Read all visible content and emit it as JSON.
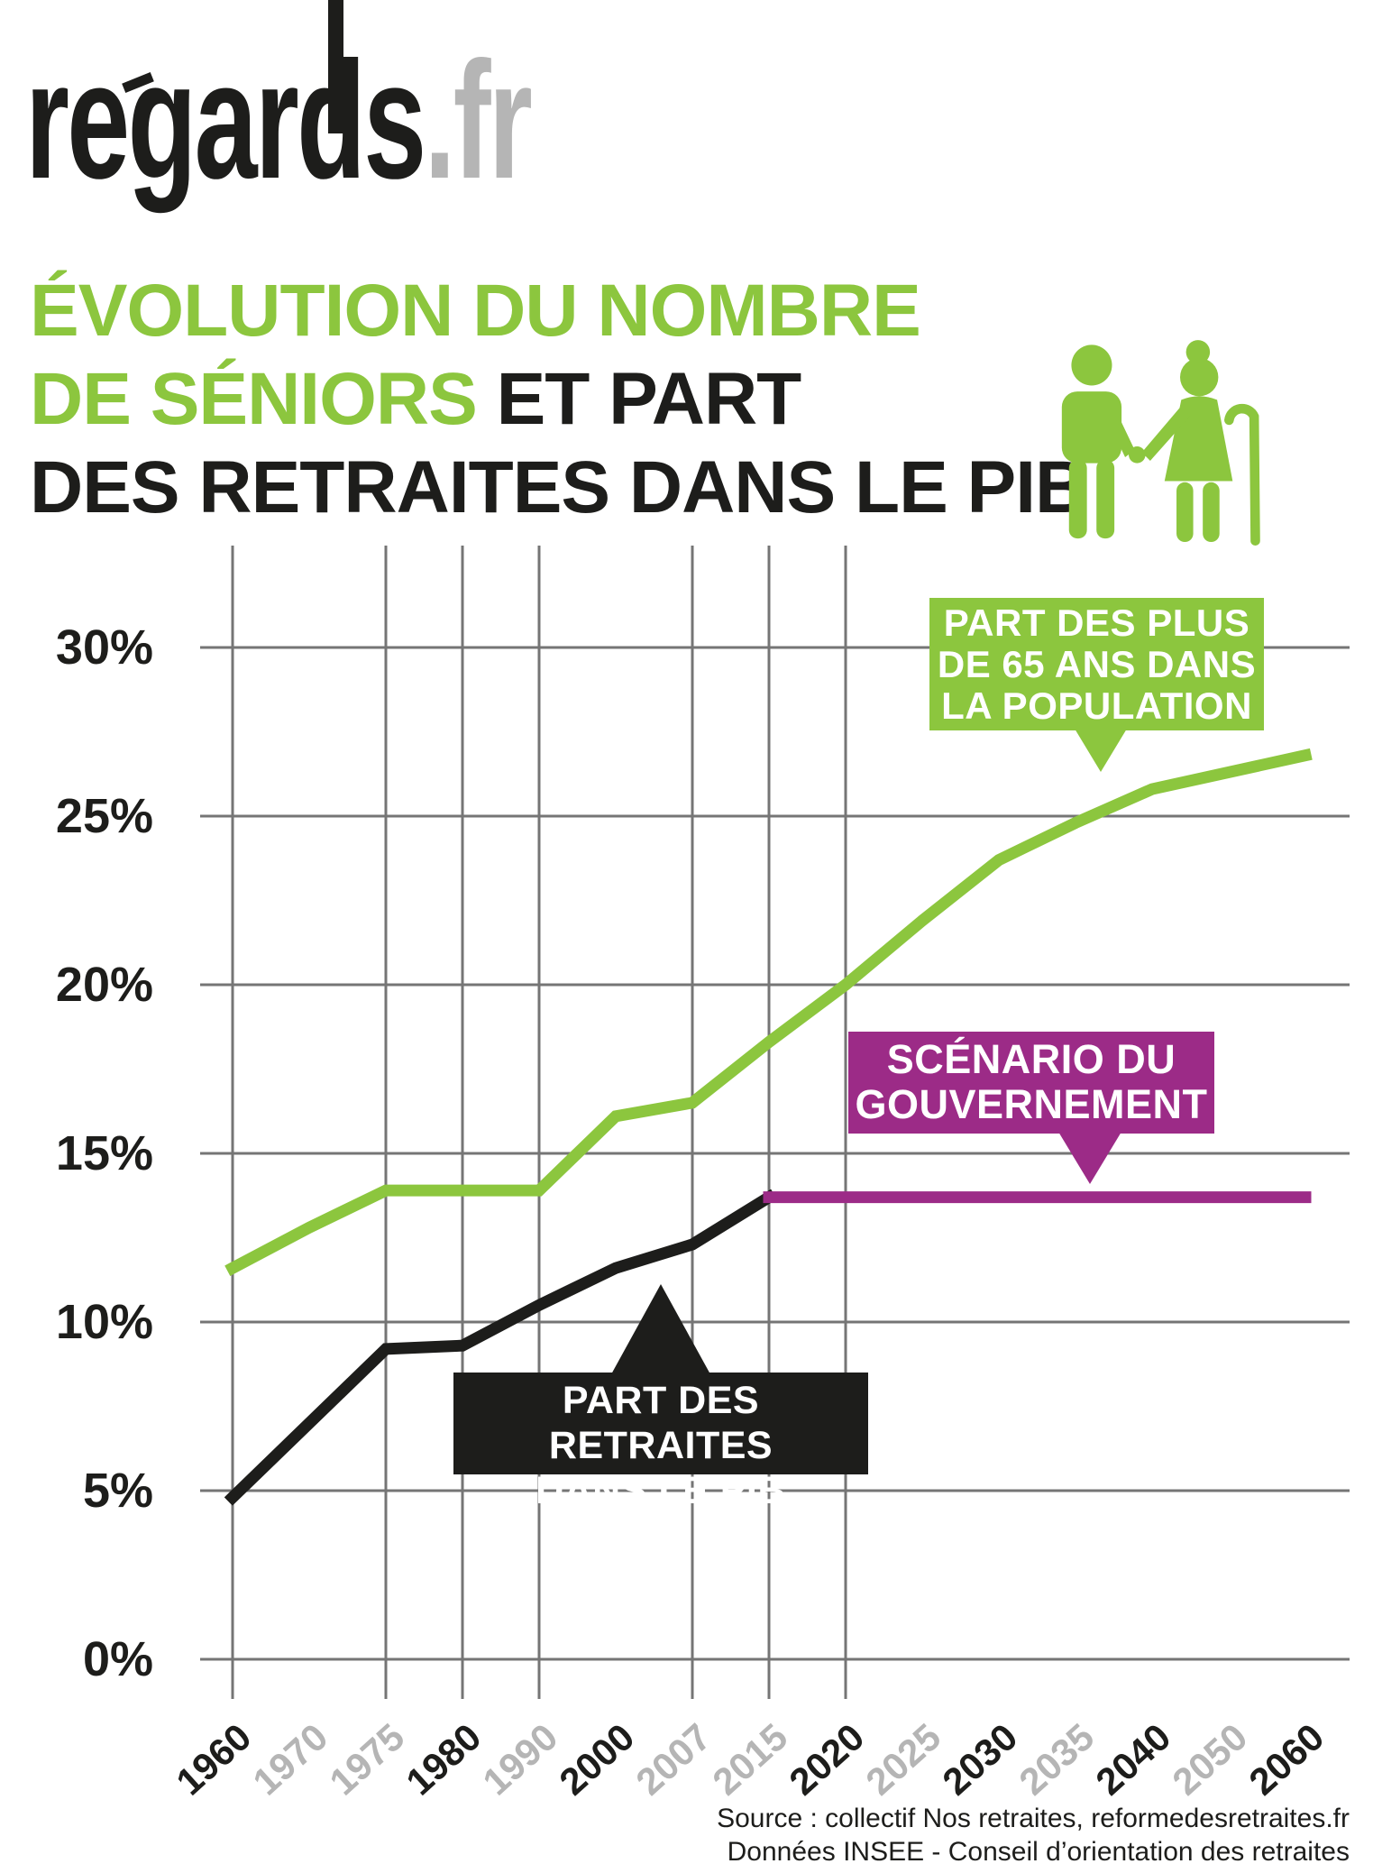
{
  "logo": {
    "name": "regards",
    "tld": ".fr"
  },
  "title": {
    "line1_green": "ÉVOLUTION DU NOMBRE",
    "line2_green": "DE SÉNIORS",
    "line2_black": " ET PART",
    "line3_black": "DES RETRAITES DANS LE PIB"
  },
  "colors": {
    "green": "#8cc63e",
    "purple": "#9c2b87",
    "black": "#1d1d1b",
    "muted_gray": "#b5b5b5",
    "grid_gray": "#757575"
  },
  "y_axis": {
    "ticks": [
      {
        "label": "30%",
        "value": 30
      },
      {
        "label": "25%",
        "value": 25
      },
      {
        "label": "20%",
        "value": 20
      },
      {
        "label": "15%",
        "value": 15
      },
      {
        "label": "10%",
        "value": 10
      },
      {
        "label": "5%",
        "value": 5
      },
      {
        "label": "0%",
        "value": 0
      }
    ]
  },
  "x_axis": {
    "labels": [
      {
        "text": "1960",
        "muted": false
      },
      {
        "text": "1970",
        "muted": true
      },
      {
        "text": "1975",
        "muted": true
      },
      {
        "text": "1980",
        "muted": false
      },
      {
        "text": "1990",
        "muted": true
      },
      {
        "text": "2000",
        "muted": false
      },
      {
        "text": "2007",
        "muted": true
      },
      {
        "text": "2015",
        "muted": true
      },
      {
        "text": "2020",
        "muted": false
      },
      {
        "text": "2025",
        "muted": true
      },
      {
        "text": "2030",
        "muted": false
      },
      {
        "text": "2035",
        "muted": true
      },
      {
        "text": "2040",
        "muted": false
      },
      {
        "text": "2050",
        "muted": true
      },
      {
        "text": "2060",
        "muted": false
      }
    ]
  },
  "callouts": {
    "green": {
      "lines": [
        "PART DES PLUS",
        "DE 65 ANS DANS",
        "LA POPULATION"
      ]
    },
    "purple": {
      "lines": [
        "SCÉNARIO DU",
        "GOUVERNEMENT"
      ]
    },
    "black": {
      "lines": [
        "PART DES RETRAITES",
        "DANS LE PIB"
      ]
    }
  },
  "source": {
    "line1": "Source : collectif Nos retraites, reformedesretraites.fr",
    "line2": "Données INSEE - Conseil d’orientation des retraites"
  },
  "chart_data": {
    "type": "line",
    "title": "Évolution du nombre de séniors et part des retraites dans le PIB",
    "x_categories": [
      "1960",
      "1970",
      "1975",
      "1980",
      "1990",
      "2000",
      "2007",
      "2015",
      "2020",
      "2025",
      "2030",
      "2035",
      "2040",
      "2050",
      "2060"
    ],
    "ylim": [
      0,
      30
    ],
    "y_ticks_percent": [
      0,
      5,
      10,
      15,
      20,
      25,
      30
    ],
    "vertical_gridline_years": [
      "1960",
      "1975",
      "1980",
      "1990",
      "2007",
      "2015",
      "2020"
    ],
    "grid": true,
    "series": [
      {
        "name": "PART DES PLUS DE 65 ANS DANS LA POPULATION",
        "color": "#8cc63e",
        "points": [
          {
            "x": "1960",
            "y": 11.6
          },
          {
            "x": "1970",
            "y": 12.8
          },
          {
            "x": "1975",
            "y": 13.9
          },
          {
            "x": "1980",
            "y": 13.9
          },
          {
            "x": "1990",
            "y": 13.9
          },
          {
            "x": "2000",
            "y": 16.1
          },
          {
            "x": "2007",
            "y": 16.5
          },
          {
            "x": "2015",
            "y": 18.3
          },
          {
            "x": "2020",
            "y": 20.0
          },
          {
            "x": "2025",
            "y": 21.9
          },
          {
            "x": "2030",
            "y": 23.7
          },
          {
            "x": "2035",
            "y": 24.8
          },
          {
            "x": "2040",
            "y": 25.8
          },
          {
            "x": "2050",
            "y": 26.3
          },
          {
            "x": "2060",
            "y": 26.8
          }
        ]
      },
      {
        "name": "PART DES RETRAITES DANS LE PIB",
        "color": "#1d1d1b",
        "points": [
          {
            "x": "1960",
            "y": 4.8
          },
          {
            "x": "1970",
            "y": 7.0
          },
          {
            "x": "1975",
            "y": 9.2
          },
          {
            "x": "1980",
            "y": 9.3
          },
          {
            "x": "1990",
            "y": 10.5
          },
          {
            "x": "2000",
            "y": 11.6
          },
          {
            "x": "2007",
            "y": 12.3
          },
          {
            "x": "2015",
            "y": 13.7
          }
        ]
      },
      {
        "name": "SCÉNARIO DU GOUVERNEMENT",
        "color": "#9c2b87",
        "points": [
          {
            "x": "2015",
            "y": 13.7
          },
          {
            "x": "2060",
            "y": 13.7
          }
        ]
      }
    ]
  }
}
